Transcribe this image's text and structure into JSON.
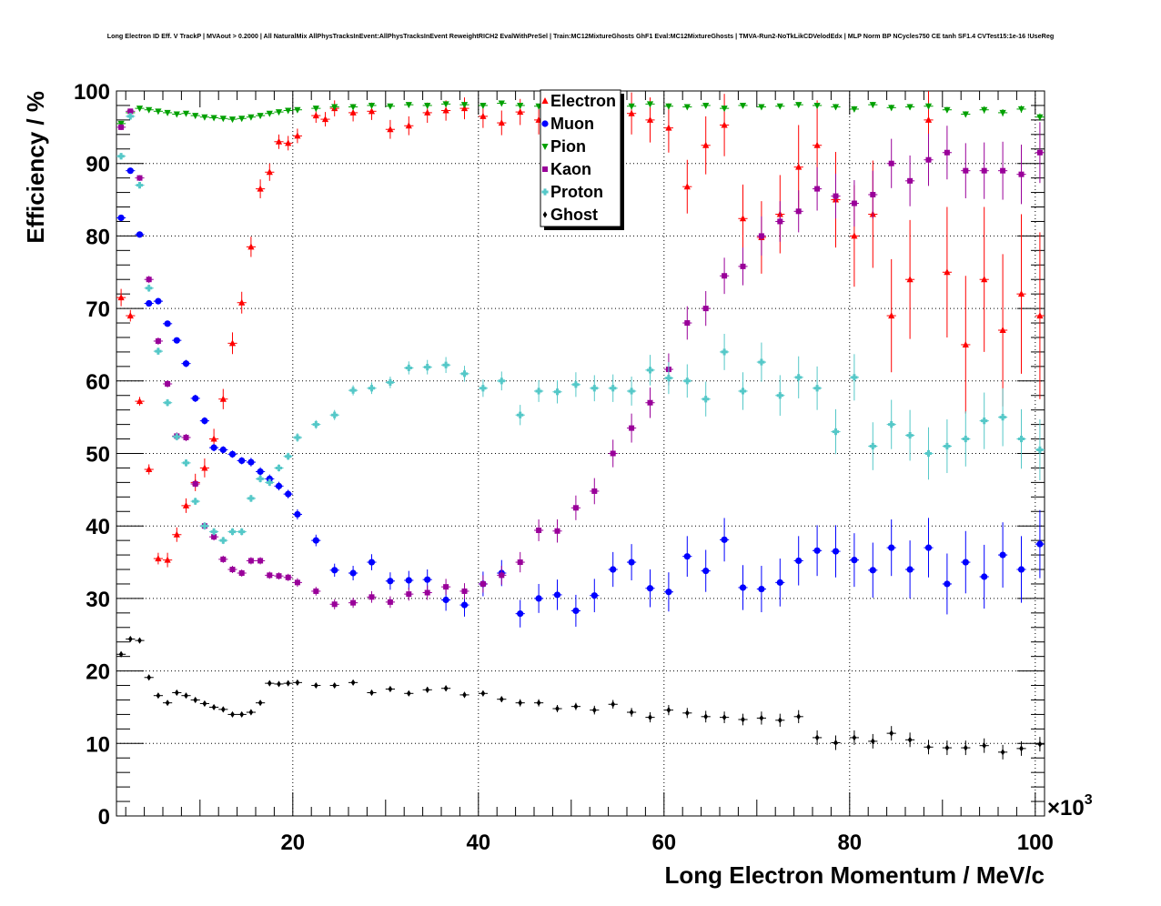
{
  "chart_data": {
    "type": "scatter",
    "title": "Long Electron ID Eff. V TrackP | MVAout > 0.2000 | All NaturalMix AllPhysTracksInEvent:AllPhysTracksInEvent ReweightRICH2 EvalWithPreSel | Train:MC12MixtureGhosts GhF1 Eval:MC12MixtureGhosts | TMVA-Run2-NoTkLikCDVelodEdx | MLP Norm BP NCycles750 CE tanh SF1.4 CVTest15:1e-16 !UseReg",
    "xlabel": "Long Electron Momentum / MeV/c",
    "ylabel": "Efficiency / %",
    "x_exponent_label": "×10",
    "x_exponent_power": "3",
    "xlim": [
      1,
      101
    ],
    "ylim": [
      0,
      100
    ],
    "x_ticks": [
      20,
      40,
      60,
      80,
      100
    ],
    "y_ticks": [
      0,
      10,
      20,
      30,
      40,
      50,
      60,
      70,
      80,
      90,
      100
    ],
    "x_tick_labels": [
      "20",
      "40",
      "60",
      "80",
      "100"
    ],
    "y_tick_labels": [
      "0",
      "10",
      "20",
      "30",
      "40",
      "50",
      "60",
      "70",
      "80",
      "90",
      "100"
    ],
    "legend_position": "top-center",
    "grid": true,
    "series": [
      {
        "name": "Electron",
        "color": "#ff0000",
        "marker": "triangle-up",
        "x": [
          1.5,
          2.5,
          3.5,
          4.5,
          5.5,
          6.5,
          7.5,
          8.5,
          9.5,
          10.5,
          11.5,
          12.5,
          13.5,
          14.5,
          15.5,
          16.5,
          17.5,
          18.5,
          19.5,
          20.5,
          22.5,
          23.5,
          24.5,
          26.5,
          28.5,
          30.5,
          32.5,
          34.5,
          36.5,
          38.5,
          40.5,
          42.5,
          44.5,
          46.5,
          48.5,
          50.5,
          52.5,
          54.5,
          56.5,
          58.5,
          60.5,
          62.5,
          64.5,
          66.5,
          68.5,
          70.5,
          72.5,
          74.5,
          76.5,
          78.5,
          80.5,
          82.5,
          84.5,
          86.5,
          88.5,
          90.5,
          92.5,
          94.5,
          96.5,
          98.5,
          100.5
        ],
        "y": [
          71.5,
          69.0,
          57.2,
          47.8,
          35.5,
          35.3,
          38.8,
          42.8,
          46.0,
          48.0,
          52.0,
          57.5,
          65.2,
          70.8,
          78.5,
          86.5,
          88.8,
          93.0,
          92.8,
          93.8,
          96.6,
          96.1,
          97.6,
          97.0,
          97.2,
          94.7,
          95.2,
          97.0,
          97.3,
          97.6,
          96.5,
          95.6,
          97.1,
          96.0,
          97.2,
          96.8,
          95.7,
          96.7,
          96.9,
          96.0,
          94.9,
          86.8,
          92.5,
          95.3,
          82.4,
          79.8,
          83.0,
          89.5,
          92.5,
          85.0,
          80.0,
          83.0,
          69.0,
          74.0,
          96.0,
          75.0,
          65.0,
          74.0,
          67.0,
          72.0,
          69.0
        ],
        "err": [
          1.2,
          0.8,
          0.6,
          0.7,
          0.8,
          1.0,
          1.0,
          1.0,
          1.2,
          1.3,
          1.4,
          1.4,
          1.5,
          1.5,
          1.4,
          1.3,
          1.2,
          1.0,
          1.0,
          1.0,
          1.0,
          1.0,
          1.1,
          1.2,
          1.2,
          1.3,
          1.3,
          1.4,
          1.4,
          1.5,
          1.6,
          1.7,
          1.8,
          2.0,
          2.2,
          2.4,
          2.5,
          2.7,
          2.9,
          3.1,
          3.4,
          3.7,
          4.0,
          4.3,
          4.7,
          5.0,
          5.4,
          5.8,
          6.2,
          6.6,
          7.0,
          7.4,
          7.8,
          8.2,
          8.6,
          9.0,
          9.5,
          10.0,
          10.5,
          11.0,
          11.5
        ]
      },
      {
        "name": "Muon",
        "color": "#0000ff",
        "marker": "circle",
        "x": [
          1.5,
          2.5,
          3.5,
          4.5,
          5.5,
          6.5,
          7.5,
          8.5,
          9.5,
          10.5,
          11.5,
          12.5,
          13.5,
          14.5,
          15.5,
          16.5,
          17.5,
          18.5,
          19.5,
          20.5,
          22.5,
          24.5,
          26.5,
          28.5,
          30.5,
          32.5,
          34.5,
          36.5,
          38.5,
          40.5,
          42.5,
          44.5,
          46.5,
          48.5,
          50.5,
          52.5,
          54.5,
          56.5,
          58.5,
          60.5,
          62.5,
          64.5,
          66.5,
          68.5,
          70.5,
          72.5,
          74.5,
          76.5,
          78.5,
          80.5,
          82.5,
          84.5,
          86.5,
          88.5,
          90.5,
          92.5,
          94.5,
          96.5,
          98.5,
          100.5
        ],
        "y": [
          82.5,
          89.0,
          80.2,
          70.7,
          71.0,
          67.9,
          65.6,
          62.4,
          57.6,
          54.5,
          50.8,
          50.5,
          49.9,
          49.0,
          48.8,
          47.5,
          46.5,
          45.5,
          44.4,
          41.6,
          38.0,
          33.9,
          33.5,
          35.0,
          32.4,
          32.5,
          32.6,
          29.8,
          29.1,
          32.0,
          33.5,
          27.9,
          30.0,
          30.5,
          28.3,
          30.4,
          34.0,
          35.0,
          31.4,
          30.9,
          35.8,
          33.8,
          38.1,
          31.5,
          31.3,
          32.2,
          35.2,
          36.6,
          36.5,
          35.3,
          33.9,
          37.0,
          34.0,
          37.0,
          32.0,
          35.0,
          33.0,
          36.0,
          34.0,
          37.5
        ],
        "err": [
          0.3,
          0.3,
          0.4,
          0.4,
          0.4,
          0.4,
          0.4,
          0.5,
          0.5,
          0.5,
          0.5,
          0.5,
          0.5,
          0.5,
          0.6,
          0.6,
          0.6,
          0.6,
          0.6,
          0.7,
          0.8,
          0.9,
          1.0,
          1.1,
          1.2,
          1.3,
          1.4,
          1.5,
          1.6,
          1.7,
          1.8,
          1.9,
          2.0,
          2.1,
          2.2,
          2.3,
          2.4,
          2.5,
          2.6,
          2.7,
          2.8,
          2.9,
          3.0,
          3.1,
          3.2,
          3.3,
          3.4,
          3.5,
          3.6,
          3.7,
          3.8,
          3.9,
          4.0,
          4.1,
          4.2,
          4.3,
          4.4,
          4.5,
          4.6,
          4.7
        ]
      },
      {
        "name": "Pion",
        "color": "#00a000",
        "marker": "triangle-down",
        "x": [
          1.5,
          2.5,
          3.5,
          4.5,
          5.5,
          6.5,
          7.5,
          8.5,
          9.5,
          10.5,
          11.5,
          12.5,
          13.5,
          14.5,
          15.5,
          16.5,
          17.5,
          18.5,
          19.5,
          20.5,
          22.5,
          24.5,
          26.5,
          28.5,
          30.5,
          32.5,
          34.5,
          36.5,
          38.5,
          40.5,
          42.5,
          44.5,
          46.5,
          48.5,
          50.5,
          52.5,
          54.5,
          56.5,
          58.5,
          60.5,
          62.5,
          64.5,
          66.5,
          68.5,
          70.5,
          72.5,
          74.5,
          76.5,
          78.5,
          80.5,
          82.5,
          84.5,
          86.5,
          88.5,
          90.5,
          92.5,
          94.5,
          96.5,
          98.5,
          100.5
        ],
        "y": [
          95.5,
          97.0,
          97.6,
          97.4,
          97.2,
          97.0,
          96.8,
          96.9,
          96.6,
          96.4,
          96.3,
          96.2,
          96.1,
          96.2,
          96.4,
          96.6,
          96.9,
          97.1,
          97.3,
          97.4,
          97.6,
          97.8,
          97.8,
          98.0,
          97.9,
          98.1,
          98.0,
          98.2,
          98.1,
          98.0,
          98.3,
          98.0,
          97.9,
          98.0,
          98.1,
          98.0,
          98.1,
          97.9,
          98.2,
          97.9,
          97.8,
          98.0,
          97.6,
          98.0,
          97.8,
          97.9,
          98.1,
          98.0,
          97.8,
          97.5,
          98.1,
          97.7,
          97.8,
          97.9,
          97.4,
          96.8,
          97.4,
          97.0,
          97.5,
          96.4
        ],
        "err": [
          0.2,
          0.2,
          0.2,
          0.2,
          0.2,
          0.2,
          0.2,
          0.2,
          0.2,
          0.2,
          0.2,
          0.2,
          0.2,
          0.2,
          0.2,
          0.2,
          0.2,
          0.2,
          0.2,
          0.2,
          0.2,
          0.2,
          0.2,
          0.2,
          0.2,
          0.2,
          0.2,
          0.2,
          0.2,
          0.2,
          0.2,
          0.3,
          0.3,
          0.3,
          0.3,
          0.3,
          0.3,
          0.3,
          0.3,
          0.3,
          0.3,
          0.3,
          0.3,
          0.3,
          0.3,
          0.3,
          0.3,
          0.3,
          0.4,
          0.4,
          0.4,
          0.4,
          0.4,
          0.4,
          0.4,
          0.4,
          0.5,
          0.5,
          0.5,
          0.5
        ]
      },
      {
        "name": "Kaon",
        "color": "#990099",
        "marker": "square",
        "x": [
          1.5,
          2.5,
          3.5,
          4.5,
          5.5,
          6.5,
          7.5,
          8.5,
          9.5,
          10.5,
          11.5,
          12.5,
          13.5,
          14.5,
          15.5,
          16.5,
          17.5,
          18.5,
          19.5,
          20.5,
          22.5,
          24.5,
          26.5,
          28.5,
          30.5,
          32.5,
          34.5,
          36.5,
          38.5,
          40.5,
          42.5,
          44.5,
          46.5,
          48.5,
          50.5,
          52.5,
          54.5,
          56.5,
          58.5,
          60.5,
          62.5,
          64.5,
          66.5,
          68.5,
          70.5,
          72.5,
          74.5,
          76.5,
          78.5,
          80.5,
          82.5,
          84.5,
          86.5,
          88.5,
          90.5,
          92.5,
          94.5,
          96.5,
          98.5,
          100.5
        ],
        "y": [
          95.0,
          97.2,
          88.0,
          74.0,
          65.5,
          59.6,
          52.4,
          52.2,
          45.8,
          40.0,
          38.5,
          35.4,
          34.0,
          33.5,
          35.2,
          35.2,
          33.2,
          33.1,
          32.9,
          32.2,
          31.0,
          29.2,
          29.4,
          30.2,
          29.5,
          30.6,
          30.8,
          31.6,
          31.0,
          32.0,
          33.2,
          35.0,
          39.4,
          39.3,
          42.5,
          44.8,
          50.0,
          53.5,
          57.0,
          61.6,
          68.0,
          70.0,
          74.5,
          75.8,
          80.0,
          82.0,
          83.4,
          86.5,
          85.5,
          84.5,
          85.7,
          90.0,
          87.6,
          90.5,
          91.5,
          89.0,
          89.0,
          89.0,
          88.5,
          91.5
        ],
        "err": [
          0.4,
          0.3,
          0.4,
          0.5,
          0.5,
          0.5,
          0.5,
          0.5,
          0.5,
          0.5,
          0.5,
          0.5,
          0.5,
          0.5,
          0.5,
          0.5,
          0.5,
          0.5,
          0.5,
          0.6,
          0.6,
          0.7,
          0.7,
          0.8,
          0.8,
          0.9,
          1.0,
          1.1,
          1.1,
          1.2,
          1.3,
          1.4,
          1.5,
          1.6,
          1.7,
          1.8,
          1.9,
          2.0,
          2.1,
          2.2,
          2.3,
          2.4,
          2.5,
          2.6,
          2.7,
          2.8,
          2.9,
          3.0,
          3.1,
          3.2,
          3.3,
          3.4,
          3.5,
          3.6,
          3.7,
          3.8,
          3.9,
          4.0,
          4.1,
          4.2
        ]
      },
      {
        "name": "Proton",
        "color": "#55c8c8",
        "marker": "cross",
        "x": [
          1.5,
          2.5,
          3.5,
          4.5,
          5.5,
          6.5,
          7.5,
          8.5,
          9.5,
          10.5,
          11.5,
          12.5,
          13.5,
          14.5,
          15.5,
          16.5,
          17.5,
          18.5,
          19.5,
          20.5,
          22.5,
          24.5,
          26.5,
          28.5,
          30.5,
          32.5,
          34.5,
          36.5,
          38.5,
          40.5,
          42.5,
          44.5,
          46.5,
          48.5,
          50.5,
          52.5,
          54.5,
          56.5,
          58.5,
          60.5,
          62.5,
          64.5,
          66.5,
          68.5,
          70.5,
          72.5,
          74.5,
          76.5,
          78.5,
          80.5,
          82.5,
          84.5,
          86.5,
          88.5,
          90.5,
          92.5,
          94.5,
          96.5,
          98.5,
          100.5
        ],
        "y": [
          91.0,
          96.5,
          87.0,
          72.8,
          64.1,
          57.0,
          52.3,
          48.7,
          43.4,
          40.0,
          39.2,
          38.0,
          39.2,
          39.2,
          43.8,
          46.5,
          46.0,
          48.0,
          49.6,
          52.2,
          54.0,
          55.3,
          58.7,
          59.0,
          59.8,
          61.8,
          61.9,
          62.2,
          61.0,
          59.0,
          60.0,
          55.3,
          58.6,
          58.5,
          59.5,
          59.0,
          59.0,
          58.6,
          61.5,
          60.4,
          60.0,
          57.5,
          64.0,
          58.6,
          62.6,
          58.0,
          60.5,
          59.0,
          53.0,
          60.5,
          51.0,
          54.0,
          52.5,
          50.0,
          51.0,
          52.0,
          54.5,
          55.0,
          52.0,
          50.5
        ],
        "err": [
          0.4,
          0.3,
          0.4,
          0.5,
          0.5,
          0.5,
          0.5,
          0.5,
          0.5,
          0.5,
          0.5,
          0.5,
          0.5,
          0.5,
          0.5,
          0.5,
          0.5,
          0.5,
          0.5,
          0.6,
          0.6,
          0.7,
          0.7,
          0.8,
          0.8,
          0.9,
          1.0,
          1.1,
          1.1,
          1.2,
          1.3,
          1.4,
          1.5,
          1.6,
          1.7,
          1.8,
          1.9,
          2.0,
          2.1,
          2.2,
          2.3,
          2.4,
          2.5,
          2.6,
          2.7,
          2.8,
          2.9,
          3.0,
          3.1,
          3.2,
          3.3,
          3.4,
          3.5,
          3.6,
          3.7,
          3.8,
          3.9,
          4.0,
          4.1,
          4.2
        ]
      },
      {
        "name": "Ghost",
        "color": "#000000",
        "marker": "diamond",
        "x": [
          1.5,
          2.5,
          3.5,
          4.5,
          5.5,
          6.5,
          7.5,
          8.5,
          9.5,
          10.5,
          11.5,
          12.5,
          13.5,
          14.5,
          15.5,
          16.5,
          17.5,
          18.5,
          19.5,
          20.5,
          22.5,
          24.5,
          26.5,
          28.5,
          30.5,
          32.5,
          34.5,
          36.5,
          38.5,
          40.5,
          42.5,
          44.5,
          46.5,
          48.5,
          50.5,
          52.5,
          54.5,
          56.5,
          58.5,
          60.5,
          62.5,
          64.5,
          66.5,
          68.5,
          70.5,
          72.5,
          74.5,
          76.5,
          78.5,
          80.5,
          82.5,
          84.5,
          86.5,
          88.5,
          90.5,
          92.5,
          94.5,
          96.5,
          98.5,
          100.5
        ],
        "y": [
          22.3,
          24.4,
          24.2,
          19.1,
          16.6,
          15.6,
          17.0,
          16.6,
          16.0,
          15.5,
          15.0,
          14.7,
          14.0,
          14.0,
          14.3,
          15.6,
          18.3,
          18.2,
          18.3,
          18.4,
          18.0,
          18.0,
          18.4,
          17.0,
          17.5,
          16.9,
          17.4,
          17.6,
          16.7,
          16.9,
          16.1,
          15.6,
          15.6,
          14.8,
          15.1,
          14.6,
          15.4,
          14.3,
          13.6,
          14.6,
          14.2,
          13.7,
          13.6,
          13.3,
          13.5,
          13.2,
          13.7,
          10.8,
          10.1,
          10.8,
          10.3,
          11.4,
          10.5,
          9.5,
          9.4,
          9.4,
          9.7,
          8.8,
          9.3,
          9.9
        ],
        "err": [
          0.2,
          0.2,
          0.2,
          0.2,
          0.2,
          0.2,
          0.2,
          0.2,
          0.2,
          0.2,
          0.2,
          0.2,
          0.2,
          0.2,
          0.2,
          0.2,
          0.2,
          0.2,
          0.2,
          0.3,
          0.3,
          0.3,
          0.3,
          0.3,
          0.3,
          0.3,
          0.4,
          0.4,
          0.4,
          0.4,
          0.4,
          0.5,
          0.5,
          0.5,
          0.5,
          0.6,
          0.6,
          0.6,
          0.7,
          0.7,
          0.7,
          0.8,
          0.8,
          0.8,
          0.9,
          0.9,
          0.9,
          1.0,
          1.0,
          1.0,
          1.0,
          1.0,
          1.0,
          1.0,
          1.0,
          1.0,
          1.0,
          1.0,
          1.0,
          1.0
        ]
      }
    ]
  }
}
